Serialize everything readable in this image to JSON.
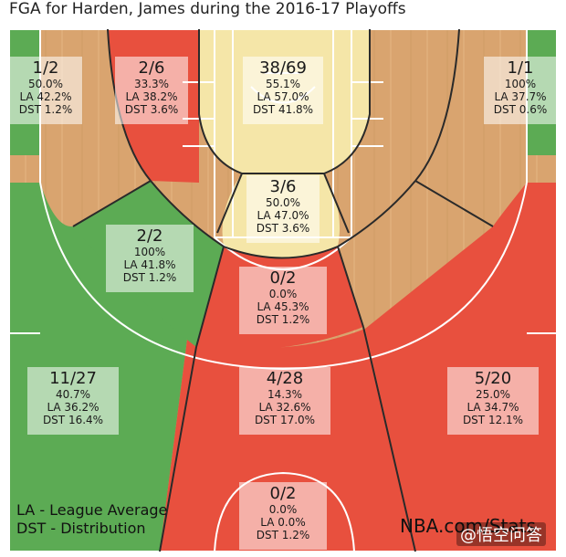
{
  "title": "FGA for Harden, James during the 2016-17 Playoffs",
  "legend": {
    "la": "LA - League Average",
    "dst": "DST - Distribution"
  },
  "source": "NBA.com/Stats",
  "watermark": "@悟空问答",
  "colors": {
    "above": "#f5e6a8",
    "average": "#f5e6a8",
    "below": "#e8503e",
    "good": "#5cab54",
    "court_wood": "#d9a46f"
  },
  "chart_data": {
    "type": "heatmap",
    "title": "FGA for Harden, James during the 2016-17 Playoffs",
    "zones": [
      {
        "id": "left-corner-3",
        "fg": "1/2",
        "pct": "50.0%",
        "la": "LA 42.2%",
        "dst": "DST 1.2%",
        "rating": "good"
      },
      {
        "id": "left-baseline-mid",
        "fg": "2/6",
        "pct": "33.3%",
        "la": "LA 38.2%",
        "dst": "DST 3.6%",
        "rating": "below"
      },
      {
        "id": "restricted-area",
        "fg": "38/69",
        "pct": "55.1%",
        "la": "LA 57.0%",
        "dst": "DST 41.8%",
        "rating": "average"
      },
      {
        "id": "right-corner-3",
        "fg": "1/1",
        "pct": "100%",
        "la": "LA 37.7%",
        "dst": "DST 0.6%",
        "rating": "good"
      },
      {
        "id": "paint-non-ra",
        "fg": "3/6",
        "pct": "50.0%",
        "la": "LA 47.0%",
        "dst": "DST 3.6%",
        "rating": "average"
      },
      {
        "id": "left-wing-mid",
        "fg": "2/2",
        "pct": "100%",
        "la": "LA 41.8%",
        "dst": "DST 1.2%",
        "rating": "good"
      },
      {
        "id": "top-key-mid",
        "fg": "0/2",
        "pct": "0.0%",
        "la": "LA 45.3%",
        "dst": "DST 1.2%",
        "rating": "below"
      },
      {
        "id": "left-wing-3",
        "fg": "11/27",
        "pct": "40.7%",
        "la": "LA 36.2%",
        "dst": "DST 16.4%",
        "rating": "good"
      },
      {
        "id": "top-key-3",
        "fg": "4/28",
        "pct": "14.3%",
        "la": "LA 32.6%",
        "dst": "DST 17.0%",
        "rating": "below"
      },
      {
        "id": "right-wing-3",
        "fg": "5/20",
        "pct": "25.0%",
        "la": "LA 34.7%",
        "dst": "DST 12.1%",
        "rating": "below"
      },
      {
        "id": "backcourt",
        "fg": "0/2",
        "pct": "0.0%",
        "la": "LA 0.0%",
        "dst": "DST 1.2%",
        "rating": "below"
      }
    ]
  }
}
